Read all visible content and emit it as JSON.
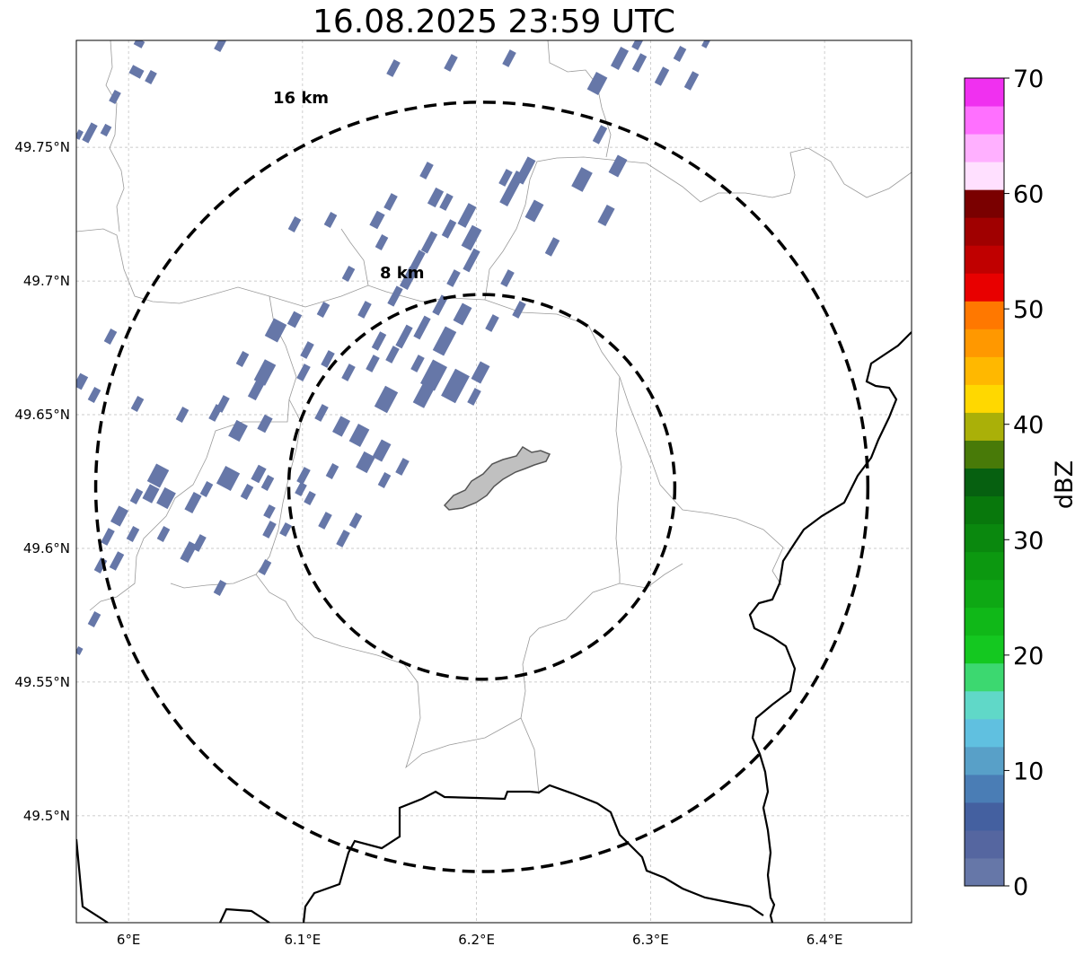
{
  "title": "16.08.2025 23:59 UTC",
  "map": {
    "extent": {
      "lon_min": 5.97,
      "lon_max": 6.45,
      "lat_min": 49.46,
      "lat_max": 49.79
    },
    "center": {
      "lon": 6.203,
      "lat": 49.623
    },
    "lon_ticks": [
      {
        "value": 6.0,
        "label": "6°E"
      },
      {
        "value": 6.1,
        "label": "6.1°E"
      },
      {
        "value": 6.2,
        "label": "6.2°E"
      },
      {
        "value": 6.3,
        "label": "6.3°E"
      },
      {
        "value": 6.4,
        "label": "6.4°E"
      }
    ],
    "lat_ticks": [
      {
        "value": 49.5,
        "label": "49.5°N"
      },
      {
        "value": 49.55,
        "label": "49.55°N"
      },
      {
        "value": 49.6,
        "label": "49.6°N"
      },
      {
        "value": 49.65,
        "label": "49.65°N"
      },
      {
        "value": 49.7,
        "label": "49.7°N"
      },
      {
        "value": 49.75,
        "label": "49.75°N"
      }
    ],
    "rings": [
      {
        "radius_km": 8,
        "label": "8 km"
      },
      {
        "radius_km": 16,
        "label": "16 km"
      }
    ],
    "echo_color": "#6677a8",
    "city_fill": "#c0c0c0",
    "border_color": "#000000",
    "admin_color": "#9a9a9a"
  },
  "colorbar": {
    "label": "dBZ",
    "vmin": 0,
    "vmax": 70,
    "tick_values": [
      0,
      10,
      20,
      30,
      40,
      50,
      60,
      70
    ],
    "tick_labels": [
      "0",
      "10",
      "20",
      "30",
      "40",
      "50",
      "60",
      "70"
    ],
    "colors": [
      "#6677a8",
      "#5566a0",
      "#4460a0",
      "#4a7db5",
      "#58a0c8",
      "#60c0e0",
      "#60d8c8",
      "#3cd870",
      "#14c820",
      "#10b818",
      "#0ea814",
      "#0c9810",
      "#0a880e",
      "#08780c",
      "#066010",
      "#487a08",
      "#aab008",
      "#ffd800",
      "#ffb800",
      "#ff9800",
      "#ff7800",
      "#e80000",
      "#c00000",
      "#a00000",
      "#7a0000",
      "#ffe0ff",
      "#ffb0ff",
      "#ff70ff",
      "#f030f0"
    ]
  }
}
